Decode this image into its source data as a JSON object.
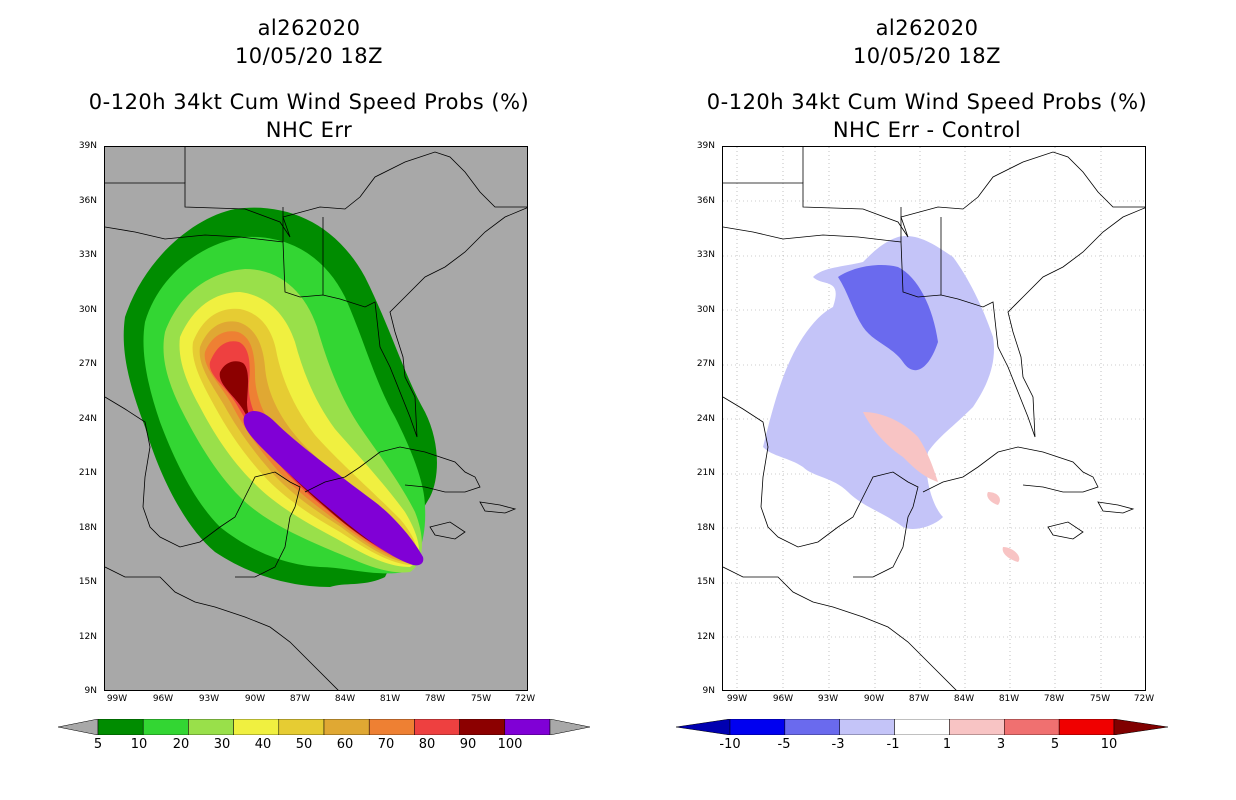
{
  "panels": [
    {
      "id": "left",
      "title_line1": "al262020",
      "title_line2": "10/05/20 18Z",
      "title_line3": "0-120h 34kt Cum Wind Speed Probs (%)",
      "title_line4": "NHC Err",
      "lat_labels": [
        "39N",
        "36N",
        "33N",
        "30N",
        "27N",
        "24N",
        "21N",
        "18N",
        "15N",
        "12N",
        "9N"
      ],
      "lon_labels": [
        "99W",
        "96W",
        "93W",
        "90W",
        "87W",
        "84W",
        "81W",
        "78W",
        "75W",
        "72W"
      ],
      "colorbar_labels": [
        "5",
        "10",
        "20",
        "30",
        "40",
        "50",
        "60",
        "70",
        "80",
        "90",
        "100"
      ],
      "colorbar_colors": [
        "#008c00",
        "#33d633",
        "#99e04a",
        "#f0f040",
        "#e6cc33",
        "#e0a833",
        "#ee8033",
        "#ee4040",
        "#8c0000",
        "#8000d6"
      ]
    },
    {
      "id": "right",
      "title_line1": "al262020",
      "title_line2": "10/05/20 18Z",
      "title_line3": "0-120h 34kt Cum Wind Speed Probs (%)",
      "title_line4": "NHC Err - Control",
      "lat_labels": [
        "39N",
        "36N",
        "33N",
        "30N",
        "27N",
        "24N",
        "21N",
        "18N",
        "15N",
        "12N",
        "9N"
      ],
      "lon_labels": [
        "99W",
        "96W",
        "93W",
        "90W",
        "87W",
        "84W",
        "81W",
        "78W",
        "75W",
        "72W"
      ],
      "colorbar_labels": [
        "-10",
        "-5",
        "-3",
        "-1",
        "1",
        "3",
        "5",
        "10"
      ],
      "colorbar_colors": [
        "#0000b0",
        "#0000f0",
        "#6a6aee",
        "#c4c4f8",
        "#ffffff",
        "#f8c4c4",
        "#f07070",
        "#f00000",
        "#800000"
      ]
    }
  ]
}
